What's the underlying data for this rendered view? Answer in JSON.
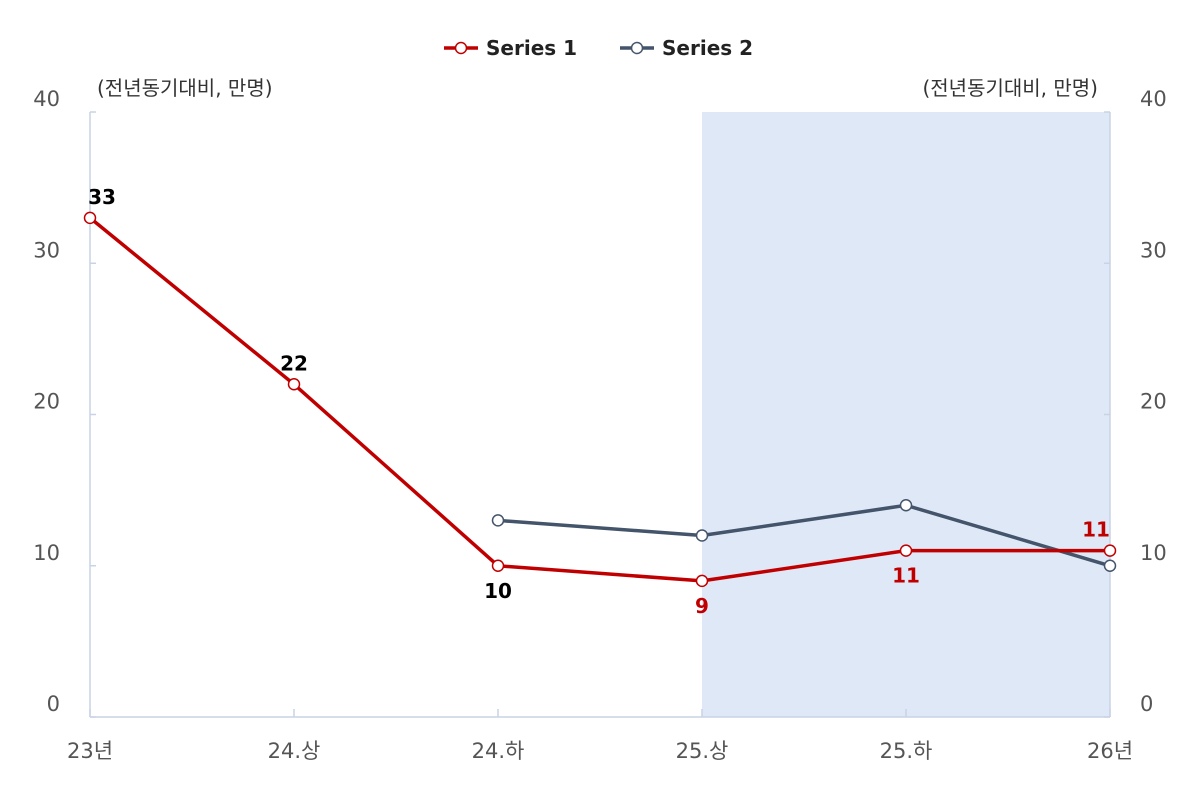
{
  "chart_data": {
    "type": "line",
    "categories": [
      "23년",
      "24.상",
      "24.하",
      "25.상",
      "25.하",
      "26년"
    ],
    "series": [
      {
        "name": "Series 1",
        "color": "#C00000",
        "values": [
          33,
          22,
          10,
          9,
          11,
          11
        ],
        "labels": [
          "33",
          "22",
          "10",
          "9",
          "11",
          "11"
        ],
        "label_colors": [
          "#000000",
          "#000000",
          "#000000",
          "#C00000",
          "#C00000",
          "#C00000"
        ],
        "label_positions": [
          "above",
          "above",
          "below",
          "below",
          "below",
          "above"
        ]
      },
      {
        "name": "Series 2",
        "color": "#44546A",
        "values": [
          null,
          null,
          13,
          12,
          14,
          10
        ]
      }
    ],
    "y_left": {
      "min": 0,
      "max": 40,
      "ticks": [
        0,
        10,
        20,
        30,
        40
      ],
      "unit_label": "(전년동기대비, 만명)"
    },
    "y_right": {
      "min": 0,
      "max": 40,
      "ticks": [
        0,
        10,
        20,
        30,
        40
      ],
      "unit_label": "(전년동기대비, 만명)"
    },
    "shaded_region": {
      "from_category": "25.상",
      "to_category": "26년",
      "color": "#DFE8F6"
    },
    "legend_position": "top-center",
    "grid": false
  }
}
